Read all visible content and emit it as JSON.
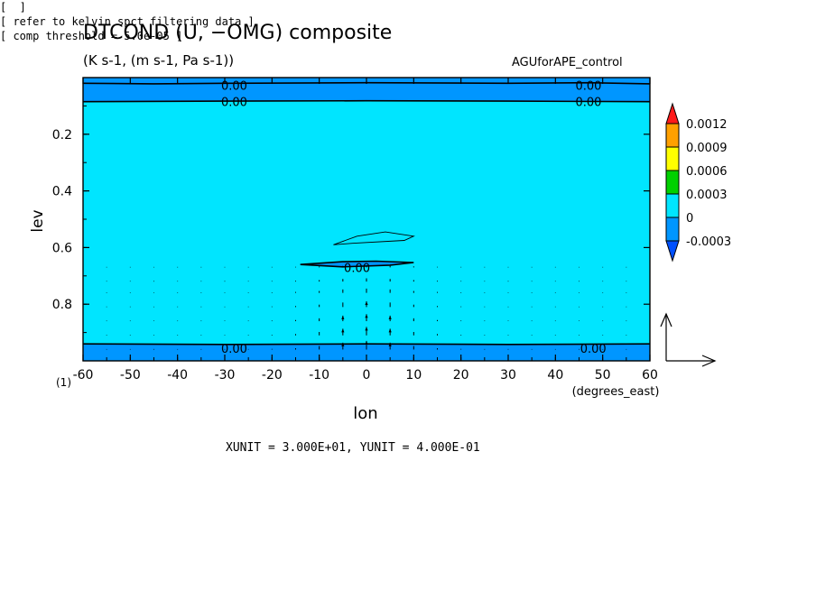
{
  "figure": {
    "title": "DTCOND (U, −OMG) composite",
    "subtitle": "(K s-1, (m s-1, Pa s-1))",
    "dataset": "AGUforAPE_control",
    "units_text": "XUNIT = 3.000E+01, YUNIT = 4.000E-01",
    "notes": [
      "[  ]",
      "[ refer to kelvin spct filtering data ]",
      "[ comp threshold = 5.0e-05 ]"
    ],
    "colors": {
      "background_shade": "#00e5ff",
      "negative_shade": "#0096ff",
      "contour": "#000000"
    }
  },
  "chart_data": {
    "type": "contour",
    "xlabel": "lon",
    "xunits": "(degrees_east)",
    "ylabel": "lev",
    "corner_label": "(1)",
    "xlim": [
      -60,
      60
    ],
    "ylim": [
      1.0,
      0.0
    ],
    "x_ticks": [
      "-60",
      "-50",
      "-40",
      "-30",
      "-20",
      "-10",
      "0",
      "10",
      "20",
      "30",
      "40",
      "50",
      "60"
    ],
    "x_tick_values": [
      -60,
      -50,
      -40,
      -30,
      -20,
      -10,
      0,
      10,
      20,
      30,
      40,
      50,
      60
    ],
    "y_ticks": [
      "0.2",
      "0.4",
      "0.6",
      "0.8"
    ],
    "y_tick_values": [
      0.2,
      0.4,
      0.6,
      0.8
    ],
    "colorbar": {
      "labels": [
        "0.0012",
        "0.0009",
        "0.0006",
        "0.0003",
        "0",
        "-0.0003"
      ],
      "colors": [
        "#ff1a1a",
        "#ffa000",
        "#ffff00",
        "#00d000",
        "#00e5ff",
        "#0096ff",
        "#0050ff"
      ]
    },
    "contour_labels": [
      {
        "text": "0.00",
        "x": -28,
        "y": 0.027
      },
      {
        "text": "0.00",
        "x": 47,
        "y": 0.027
      },
      {
        "text": "0.00",
        "x": -28,
        "y": 0.085
      },
      {
        "text": "0.00",
        "x": 47,
        "y": 0.085
      },
      {
        "text": "0.00",
        "x": -2,
        "y": 0.67
      },
      {
        "text": "0.00",
        "x": -28,
        "y": 0.955
      },
      {
        "text": "0.00",
        "x": 48,
        "y": 0.955
      }
    ],
    "regions": [
      {
        "name": "top-negative",
        "polygon": [
          [
            -60,
            0.0
          ],
          [
            60,
            0.0
          ],
          [
            60,
            0.085
          ],
          [
            30,
            0.083
          ],
          [
            0,
            0.082
          ],
          [
            -30,
            0.083
          ],
          [
            -60,
            0.085
          ]
        ]
      },
      {
        "name": "mid-negative",
        "polygon": [
          [
            -14,
            0.66
          ],
          [
            -5,
            0.65
          ],
          [
            2,
            0.648
          ],
          [
            10,
            0.653
          ],
          [
            5,
            0.662
          ],
          [
            -5,
            0.668
          ]
        ]
      },
      {
        "name": "bottom-negative",
        "polygon": [
          [
            -60,
            0.94
          ],
          [
            60,
            0.94
          ],
          [
            60,
            1.0
          ],
          [
            -60,
            1.0
          ]
        ]
      }
    ],
    "contours": [
      {
        "name": "top-upper",
        "points": [
          [
            -60,
            0.02
          ],
          [
            -45,
            0.022
          ],
          [
            -30,
            0.02
          ],
          [
            0,
            0.018
          ],
          [
            30,
            0.02
          ],
          [
            47,
            0.018
          ],
          [
            60,
            0.022
          ]
        ]
      },
      {
        "name": "top-lower",
        "points": [
          [
            -60,
            0.085
          ],
          [
            -30,
            0.083
          ],
          [
            0,
            0.082
          ],
          [
            30,
            0.083
          ],
          [
            60,
            0.085
          ]
        ]
      },
      {
        "name": "mid-thin",
        "points": [
          [
            -7,
            0.59
          ],
          [
            -2,
            0.56
          ],
          [
            4,
            0.545
          ],
          [
            10,
            0.56
          ],
          [
            8,
            0.575
          ],
          [
            -3,
            0.585
          ],
          [
            -7,
            0.59
          ]
        ]
      },
      {
        "name": "mid-neg",
        "points": [
          [
            -14,
            0.66
          ],
          [
            -5,
            0.65
          ],
          [
            2,
            0.648
          ],
          [
            10,
            0.653
          ],
          [
            5,
            0.662
          ],
          [
            -5,
            0.668
          ],
          [
            -14,
            0.66
          ]
        ]
      },
      {
        "name": "bottom",
        "points": [
          [
            -60,
            0.94
          ],
          [
            -30,
            0.942
          ],
          [
            0,
            0.94
          ],
          [
            30,
            0.942
          ],
          [
            60,
            0.94
          ]
        ]
      }
    ],
    "vectors": {
      "x": [
        -60,
        -55,
        -50,
        -45,
        -40,
        -35,
        -30,
        -25,
        -20,
        -15,
        -10,
        -5,
        0,
        5,
        10,
        15,
        20,
        25,
        30,
        35,
        40,
        45,
        50,
        55,
        60
      ],
      "levels": [
        0.67,
        0.72,
        0.76,
        0.81,
        0.86,
        0.91,
        0.96
      ],
      "w_peak": {
        "center_lon": 0,
        "max": 0.07,
        "width": 10
      }
    },
    "reference_vector": {
      "u": 30,
      "w": 0.4
    }
  }
}
